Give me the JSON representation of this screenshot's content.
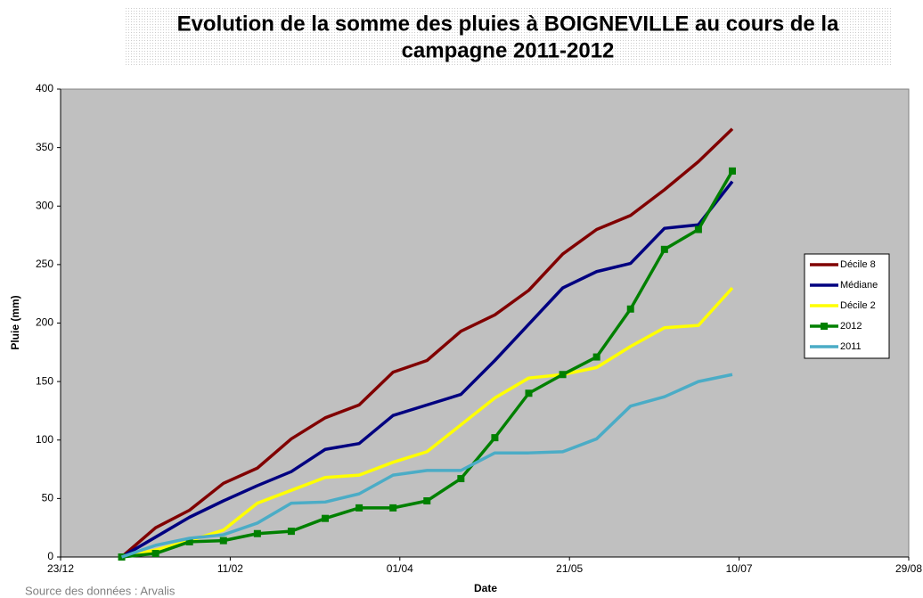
{
  "chart_data": {
    "type": "line",
    "title": "Evolution de la somme des pluies à BOIGNEVILLE au cours de la",
    "subtitle": "campagne 2011-2012",
    "x_label": "Date",
    "y_label": "Pluie (mm)",
    "source": "Source des données : Arvalis",
    "x": [
      18,
      28,
      38,
      48,
      58,
      68,
      78,
      88,
      98,
      108,
      118,
      128,
      138,
      148,
      158,
      168,
      178,
      188,
      198
    ],
    "xlim": [
      0,
      250
    ],
    "xticks": [
      {
        "value": 0,
        "label": "23/12"
      },
      {
        "value": 50,
        "label": "11/02"
      },
      {
        "value": 100,
        "label": "01/04"
      },
      {
        "value": 150,
        "label": "21/05"
      },
      {
        "value": 200,
        "label": "10/07"
      },
      {
        "value": 250,
        "label": "29/08"
      }
    ],
    "ylim": [
      0,
      400
    ],
    "yticks": [
      0,
      50,
      100,
      150,
      200,
      250,
      300,
      350,
      400
    ],
    "grid": false,
    "legend": "right",
    "series": [
      {
        "name": "Décile 8",
        "color": "#800000",
        "values": [
          0,
          25,
          40,
          63,
          76,
          101,
          119,
          130,
          158,
          168,
          193,
          207,
          228,
          259,
          280,
          292,
          314,
          338,
          366
        ]
      },
      {
        "name": "Médiane",
        "color": "#000080",
        "values": [
          0,
          17,
          34,
          48,
          61,
          73,
          92,
          97,
          121,
          130,
          139,
          168,
          199,
          230,
          244,
          251,
          281,
          284,
          321
        ]
      },
      {
        "name": "Décile 2",
        "color": "#ffff00",
        "values": [
          0,
          6,
          14,
          23,
          46,
          57,
          68,
          70,
          81,
          90,
          113,
          136,
          153,
          156,
          162,
          180,
          196,
          198,
          230
        ]
      },
      {
        "name": "2012",
        "color": "#008000",
        "marker": "square",
        "values": [
          0,
          3,
          13,
          14,
          20,
          22,
          33,
          42,
          42,
          48,
          67,
          102,
          140,
          156,
          171,
          212,
          263,
          280,
          330
        ]
      },
      {
        "name": "2011",
        "color": "#4bacc6",
        "values": [
          0,
          10,
          16,
          19,
          29,
          46,
          47,
          54,
          70,
          74,
          74,
          89,
          89,
          90,
          101,
          129,
          137,
          150,
          156
        ]
      }
    ]
  }
}
